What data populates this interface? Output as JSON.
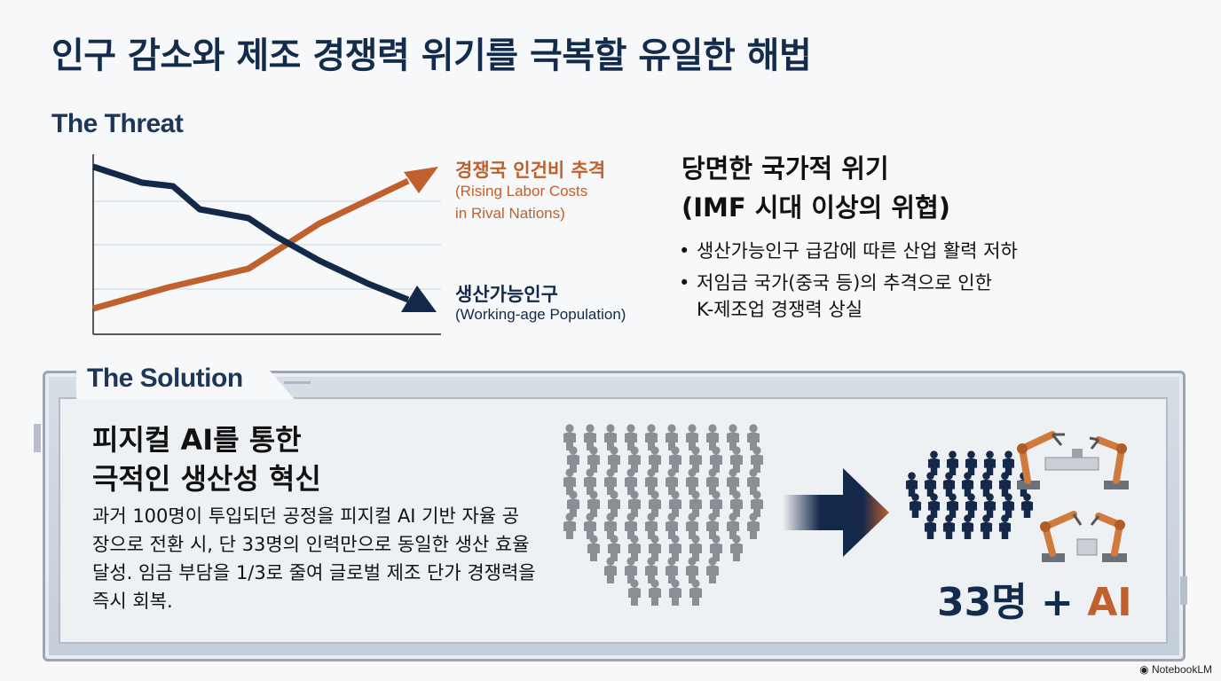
{
  "page": {
    "title": "인구 감소와 제조 경쟁력 위기를 극복할 유일한 해법"
  },
  "threat": {
    "label": "The Threat",
    "chart": {
      "rising_ko": "경쟁국 인건비 추격",
      "rising_en_line1": "(Rising Labor Costs",
      "rising_en_line2": "in Rival Nations)",
      "falling_ko": "생산가능인구",
      "falling_en": "(Working-age Population)",
      "rising_color": "#c0602c",
      "falling_color": "#14284a"
    },
    "crisis": {
      "title_line1": "당면한 국가적 위기",
      "title_line2": "(IMF 시대 이상의 위협)",
      "bullet1": "생산가능인구 급감에 따른 산업 활력 저하",
      "bullet2_line1": "저임금 국가(중국 등)의 추격으로 인한",
      "bullet2_line2": "K-제조업 경쟁력 상실"
    }
  },
  "solution": {
    "label": "The Solution",
    "title_line1": "피지컬 AI를 통한",
    "title_line2": "극적인 생산성 혁신",
    "body": "과거 100명이 투입되던 공정을 피지컬 AI 기반 자율 공장으로 전환 시, 단 33명의 인력만으로 동일한 생산 효율 달성. 임금 부담을 1/3로 줄여 글로벌 제조 단가 경쟁력을 즉시 회복.",
    "result_number": "33명 +",
    "result_ai": "AI",
    "crowd_icon": "people-crowd-icon",
    "robot_icon": "robot-arm-icon",
    "accent_color": "#c0602c",
    "navy_color": "#14284a"
  },
  "watermark": "NotebookLM"
}
